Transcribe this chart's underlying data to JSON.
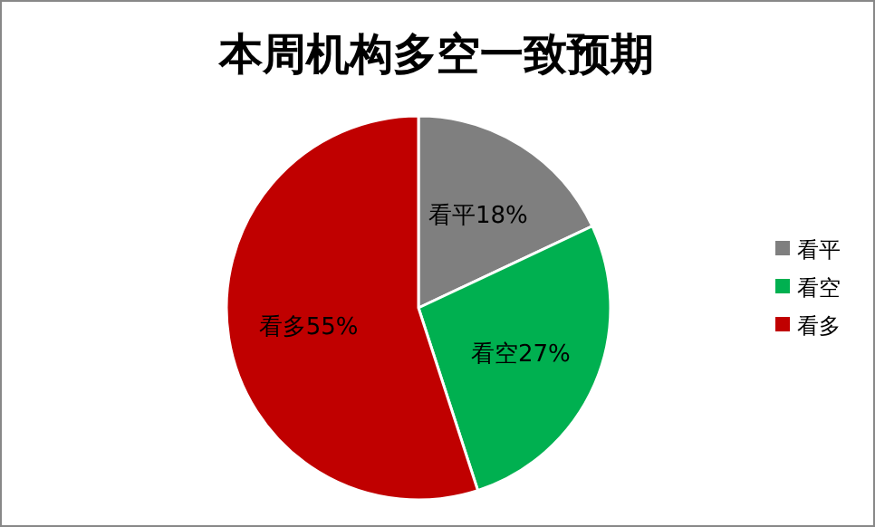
{
  "chart_data": {
    "type": "pie",
    "title": "本周机构多空一致预期",
    "categories": [
      "看平",
      "看空",
      "看多"
    ],
    "values": [
      18,
      27,
      55
    ],
    "colors": [
      "#7f7f7f",
      "#00b050",
      "#c00000"
    ],
    "value_labels": [
      "看平18%",
      "看空27%",
      "看多55%"
    ],
    "legend": "right"
  }
}
